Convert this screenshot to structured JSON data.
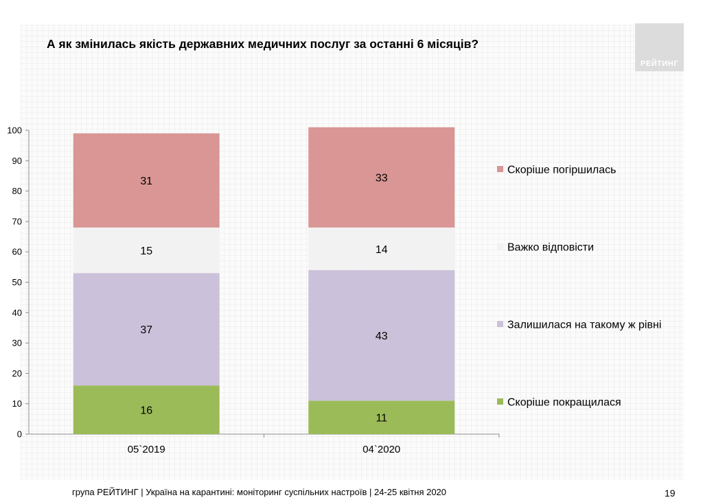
{
  "title": "А як змінилась якість державних медичних послуг за останні 6 місяців?",
  "logo_text": "РЕЙТИНГ",
  "footer": "група РЕЙТИНГ | Україна на карантині: моніторинг суспільних настроїв  | 24-25 квітня  2020",
  "page_number": "19",
  "chart_data": {
    "type": "bar",
    "stacked": true,
    "categories": [
      "05`2019",
      "04`2020"
    ],
    "series": [
      {
        "name": "Скоріше покращилася",
        "values": [
          16,
          11
        ],
        "color": "#9bbb59"
      },
      {
        "name": "Залишилася на такому ж рівні",
        "values": [
          37,
          43
        ],
        "color": "#ccc1da"
      },
      {
        "name": "Важко відповісти",
        "values": [
          15,
          14
        ],
        "color": "#f2f2f2"
      },
      {
        "name": "Скоріше погіршилась",
        "values": [
          31,
          33
        ],
        "color": "#d99694"
      }
    ],
    "ylim": [
      0,
      100
    ],
    "yticks": [
      0,
      10,
      20,
      30,
      40,
      50,
      60,
      70,
      80,
      90,
      100
    ],
    "legend_position": "right",
    "grid": false
  }
}
